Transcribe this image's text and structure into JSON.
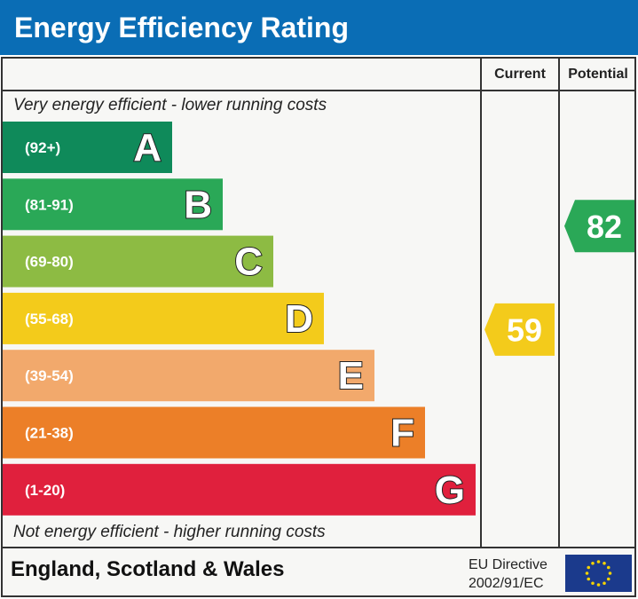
{
  "title": "Energy Efficiency Rating",
  "columns": {
    "current": "Current",
    "potential": "Potential"
  },
  "notes": {
    "top": "Very energy efficient - lower running costs",
    "bottom": "Not energy efficient - higher running costs"
  },
  "footer": {
    "region": "England, Scotland & Wales",
    "directive_line1": "EU Directive",
    "directive_line2": "2002/91/EC"
  },
  "chart_data": {
    "type": "bar",
    "categories": [
      "A",
      "B",
      "C",
      "D",
      "E",
      "F",
      "G"
    ],
    "ranges": [
      "(92+)",
      "(81-91)",
      "(69-80)",
      "(55-68)",
      "(39-54)",
      "(21-38)",
      "(1-20)"
    ],
    "colors": [
      "#0f8a5a",
      "#2aa857",
      "#8dbb43",
      "#f3cb1b",
      "#f2a96c",
      "#ec7f28",
      "#e0203d"
    ],
    "current": {
      "value": 59,
      "band": "D",
      "color": "#f3cb1b"
    },
    "potential": {
      "value": 82,
      "band": "B",
      "color": "#2aa857"
    }
  }
}
